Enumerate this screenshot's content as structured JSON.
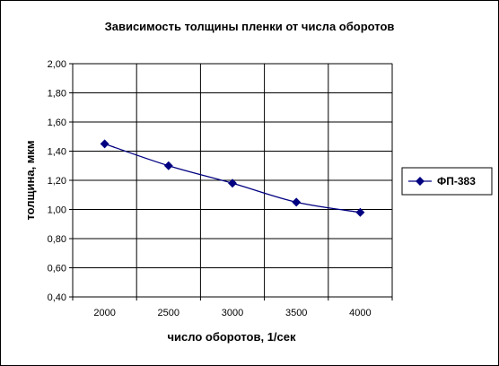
{
  "chart_data": {
    "type": "line",
    "title": "Зависимость толщины пленки от числа оборотов",
    "xlabel": "число оборотов, 1/сек",
    "ylabel": "толщина, мкм",
    "x": [
      2000,
      2500,
      3000,
      3500,
      4000
    ],
    "x_tick_labels": [
      "2000",
      "2500",
      "3000",
      "3500",
      "4000"
    ],
    "ylim": [
      0.4,
      2.0
    ],
    "y_tick_labels": [
      "2,00",
      "1,80",
      "1,60",
      "1,40",
      "1,20",
      "1,00",
      "0,80",
      "0,60",
      "0,40"
    ],
    "series": [
      {
        "name": "ФП-383",
        "values": [
          1.45,
          1.3,
          1.18,
          1.05,
          0.98
        ],
        "color": "#000080"
      }
    ],
    "grid": true,
    "legend_position": "right"
  }
}
